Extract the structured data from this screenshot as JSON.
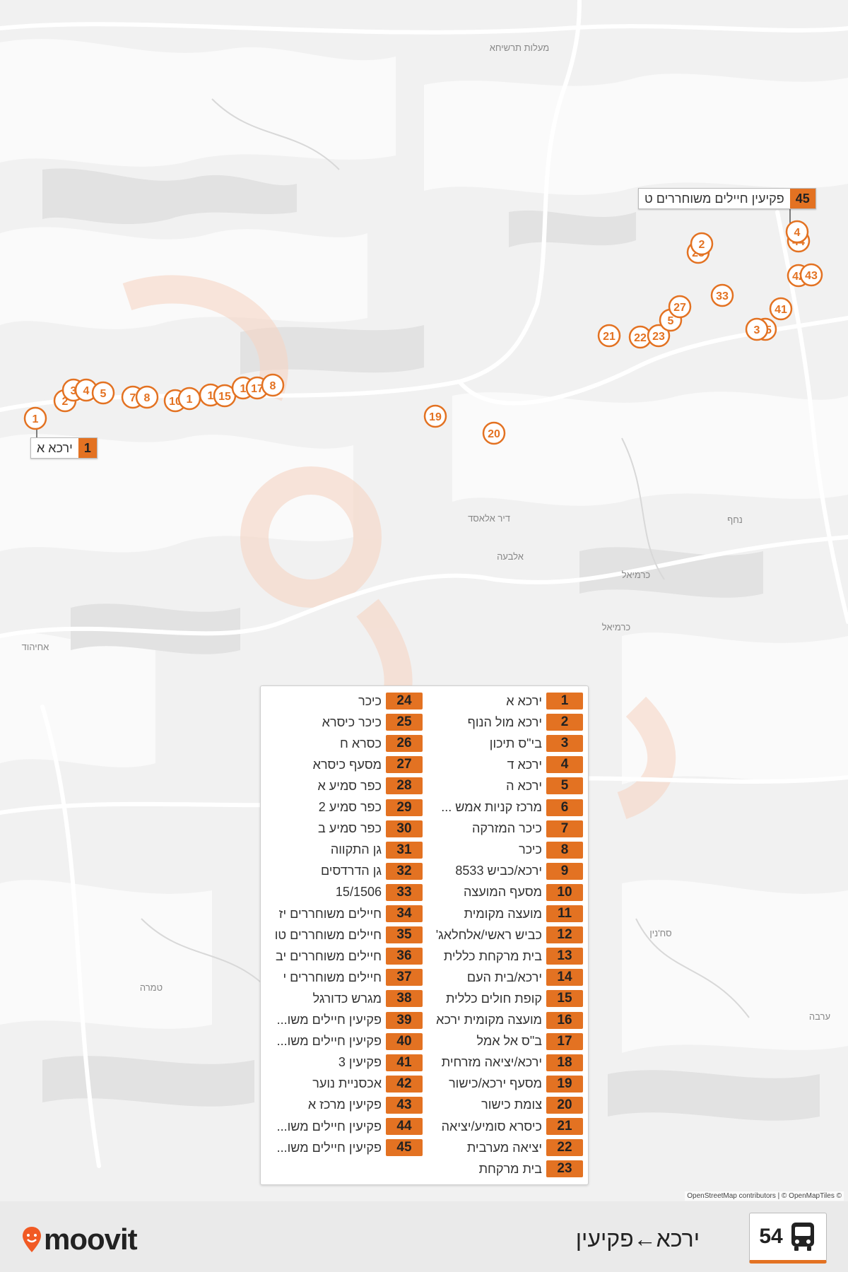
{
  "colors": {
    "accent": "#e37222",
    "map_bg": "#f1f1f1",
    "water_white": "#ffffff"
  },
  "map": {
    "place_labels": [
      "מעלות תרשיחא",
      "נחף",
      "דיר אלאסד",
      "אלבעה",
      "כרמיאל",
      "כרמיאל",
      "אחיהוד",
      "סח'נין",
      "טמרה",
      "ערבה"
    ],
    "callouts": [
      {
        "num": "45",
        "name": "פקיעין חיילים משוחררים ט"
      },
      {
        "num": "1",
        "name": "ירכא א"
      }
    ],
    "markers": [
      "1",
      "2",
      "3",
      "4",
      "5",
      "7",
      "8",
      "10",
      "1",
      "1",
      "15",
      "1",
      "17",
      "8",
      "19",
      "20",
      "21",
      "22",
      "23",
      "5",
      "27",
      "28",
      "2",
      "33",
      "41",
      "35",
      "3",
      "42",
      "43",
      "44",
      "4"
    ]
  },
  "legend": {
    "left_column": [
      {
        "num": "1",
        "name": "ירכא א"
      },
      {
        "num": "2",
        "name": "ירכא מול הנוף"
      },
      {
        "num": "3",
        "name": "בי\"ס תיכון"
      },
      {
        "num": "4",
        "name": "ירכא ד"
      },
      {
        "num": "5",
        "name": "ירכא ה"
      },
      {
        "num": "6",
        "name": "מרכז קניות אמש ..."
      },
      {
        "num": "7",
        "name": "כיכר המזרקה"
      },
      {
        "num": "8",
        "name": "כיכר"
      },
      {
        "num": "9",
        "name": "ירכא/כביש 8533"
      },
      {
        "num": "10",
        "name": "מסעף המועצה"
      },
      {
        "num": "11",
        "name": "מועצה מקומית"
      },
      {
        "num": "12",
        "name": "כביש ראשי/אלחלאג'"
      },
      {
        "num": "13",
        "name": "בית מרקחת כללית"
      },
      {
        "num": "14",
        "name": "ירכא/בית העם"
      },
      {
        "num": "15",
        "name": "קופת חולים כללית"
      },
      {
        "num": "16",
        "name": "מועצה מקומית ירכא"
      },
      {
        "num": "17",
        "name": "ב\"ס אל אמל"
      },
      {
        "num": "18",
        "name": "ירכא/יציאה מזרחית"
      },
      {
        "num": "19",
        "name": "מסעף ירכא/כישור"
      },
      {
        "num": "20",
        "name": "צומת כישור"
      },
      {
        "num": "21",
        "name": "כיסרא סומיע/יציאה"
      },
      {
        "num": "22",
        "name": "יציאה מערבית"
      },
      {
        "num": "23",
        "name": "בית מרקחת"
      }
    ],
    "right_column": [
      {
        "num": "24",
        "name": "כיכר"
      },
      {
        "num": "25",
        "name": "כיכר כיסרא"
      },
      {
        "num": "26",
        "name": "כסרא ח"
      },
      {
        "num": "27",
        "name": "מסעף כיסרא"
      },
      {
        "num": "28",
        "name": "כפר סמיע א"
      },
      {
        "num": "29",
        "name": "כפר סמיע 2"
      },
      {
        "num": "30",
        "name": "כפר סמיע ב"
      },
      {
        "num": "31",
        "name": "גן התקווה"
      },
      {
        "num": "32",
        "name": "גן הדרדסים"
      },
      {
        "num": "33",
        "name": "15/1506"
      },
      {
        "num": "34",
        "name": "חיילים משוחררים יז"
      },
      {
        "num": "35",
        "name": "חיילים משוחררים טו"
      },
      {
        "num": "36",
        "name": "חיילים משוחררים יב"
      },
      {
        "num": "37",
        "name": "חיילים משוחררים י"
      },
      {
        "num": "38",
        "name": "מגרש כדורגל"
      },
      {
        "num": "39",
        "name": "פקיעין חיילים משו..."
      },
      {
        "num": "40",
        "name": "פקיעין חיילים משו..."
      },
      {
        "num": "41",
        "name": "פקיעין 3"
      },
      {
        "num": "42",
        "name": "אכסניית נוער"
      },
      {
        "num": "43",
        "name": "פקיעין מרכז א"
      },
      {
        "num": "44",
        "name": "פקיעין חיילים משו..."
      },
      {
        "num": "45",
        "name": "פקיעין חיילים משו..."
      }
    ]
  },
  "attribution": "OpenStreetMap contributors | © OpenMapTiles ©",
  "footer": {
    "brand": "moovit",
    "route_title": "ירכא←פקיעין",
    "route_number": "54",
    "bus_icon": "bus-icon"
  }
}
